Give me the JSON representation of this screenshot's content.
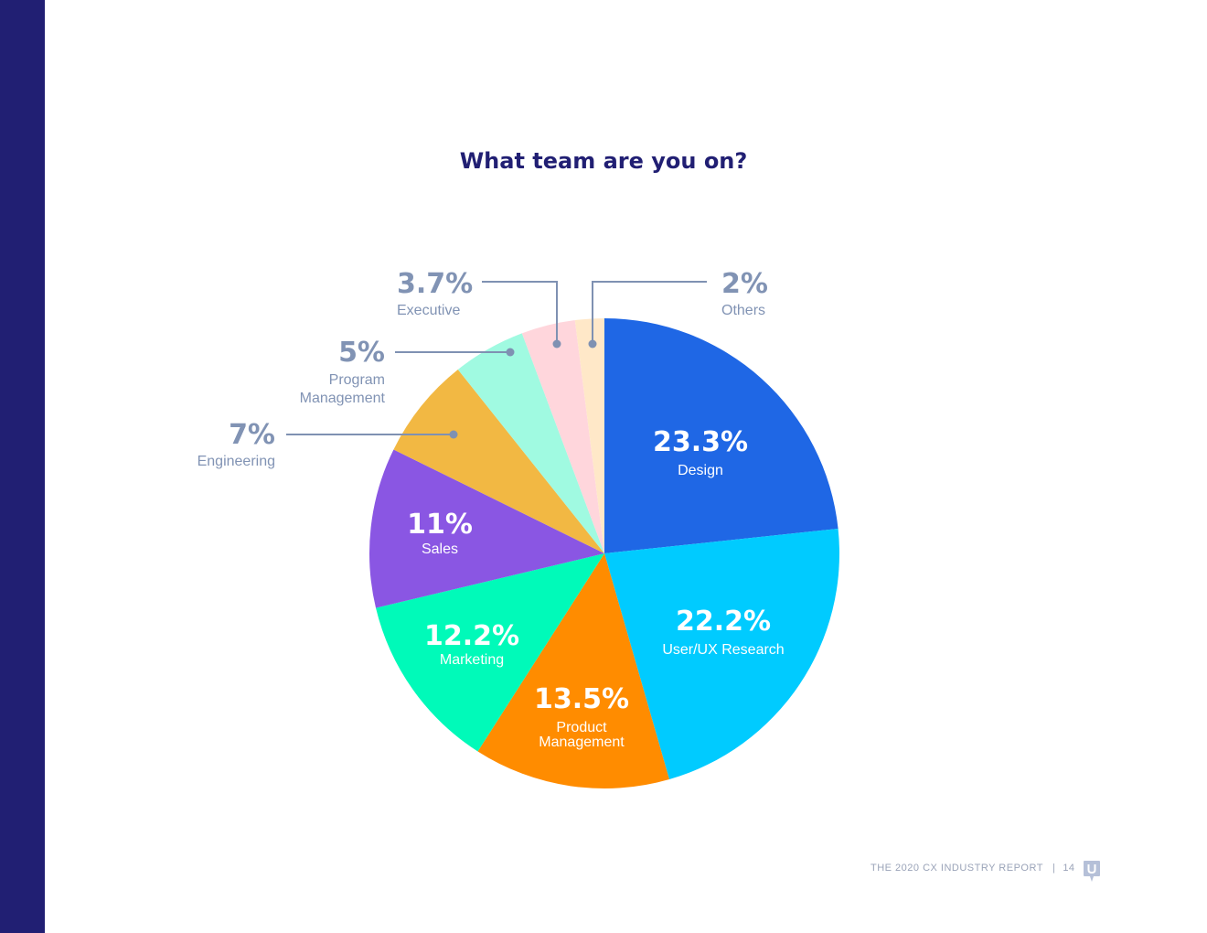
{
  "colors": {
    "sidebar": "#211f73",
    "title": "#211f73",
    "callout_text": "#8193b4",
    "callout_line": "#7f91b2",
    "inside_label": "#ffffff",
    "footer_text": "#9aa3b8",
    "logo": "#b5c0d8"
  },
  "footer": {
    "report": "THE 2020 CX INDUSTRY REPORT",
    "separator": "|",
    "page": "14"
  },
  "logo_icon": "usertesting-speech-bubble-icon",
  "chart_data": {
    "type": "pie",
    "title": "What team are you on?",
    "start": "12 o'clock, clockwise",
    "slices": [
      {
        "label": "Design",
        "value": 23.3,
        "display": "23.3%",
        "label_lines": [
          "Design"
        ],
        "color": "#1f67e5",
        "placement": "inside"
      },
      {
        "label": "User/UX Research",
        "value": 22.2,
        "display": "22.2%",
        "label_lines": [
          "User/UX Research"
        ],
        "color": "#00cbff",
        "placement": "inside"
      },
      {
        "label": "Product Management",
        "value": 13.5,
        "display": "13.5%",
        "label_lines": [
          "Product",
          "Management"
        ],
        "color": "#ff8c00",
        "placement": "inside"
      },
      {
        "label": "Marketing",
        "value": 12.2,
        "display": "12.2%",
        "label_lines": [
          "Marketing"
        ],
        "color": "#00fab9",
        "placement": "inside"
      },
      {
        "label": "Sales",
        "value": 11,
        "display": "11%",
        "label_lines": [
          "Sales"
        ],
        "color": "#8a56e3",
        "placement": "inside"
      },
      {
        "label": "Engineering",
        "value": 7,
        "display": "7%",
        "label_lines": [
          "Engineering"
        ],
        "color": "#f2b843",
        "placement": "callout-left"
      },
      {
        "label": "Program Management",
        "value": 5,
        "display": "5%",
        "label_lines": [
          "Program",
          "Management"
        ],
        "color": "#a0fae1",
        "placement": "callout-left"
      },
      {
        "label": "Executive",
        "value": 3.7,
        "display": "3.7%",
        "label_lines": [
          "Executive"
        ],
        "color": "#ffd6dc",
        "placement": "callout-top"
      },
      {
        "label": "Others",
        "value": 2,
        "display": "2%",
        "label_lines": [
          "Others"
        ],
        "color": "#ffe8c8",
        "placement": "callout-top"
      }
    ]
  }
}
